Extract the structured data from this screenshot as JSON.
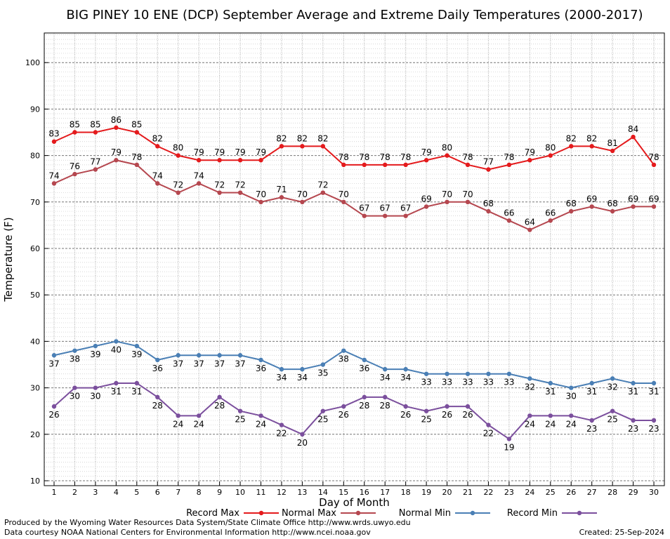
{
  "chart_data": {
    "type": "line",
    "title": "BIG PINEY 10 ENE (DCP) September Average and Extreme Daily Temperatures (2000-2017)",
    "xlabel": "Day of Month",
    "ylabel": "Temperature (F)",
    "xlim": [
      1,
      30
    ],
    "ylim": [
      10,
      106
    ],
    "yticks": [
      10,
      20,
      30,
      40,
      50,
      60,
      70,
      80,
      90,
      100
    ],
    "grid": true,
    "legend_position": "bottom",
    "x": [
      1,
      2,
      3,
      4,
      5,
      6,
      7,
      8,
      9,
      10,
      11,
      12,
      13,
      14,
      15,
      16,
      17,
      18,
      19,
      20,
      21,
      22,
      23,
      24,
      25,
      26,
      27,
      28,
      29,
      30
    ],
    "series": [
      {
        "name": "Record Max",
        "color": "#e41a1c",
        "label_pos": "above",
        "values": [
          83,
          85,
          85,
          86,
          85,
          82,
          80,
          79,
          79,
          79,
          79,
          82,
          82,
          82,
          78,
          78,
          78,
          78,
          79,
          80,
          78,
          77,
          78,
          79,
          80,
          82,
          82,
          81,
          84,
          78
        ]
      },
      {
        "name": "Normal Max",
        "color": "#b5474f",
        "label_pos": "above",
        "values": [
          74,
          76,
          77,
          79,
          78,
          74,
          72,
          74,
          72,
          72,
          70,
          71,
          70,
          72,
          70,
          67,
          67,
          67,
          69,
          70,
          70,
          68,
          66,
          64,
          66,
          68,
          69,
          68,
          69,
          69
        ]
      },
      {
        "name": "Normal Min",
        "color": "#4a7fb5",
        "label_pos": "below",
        "values": [
          37,
          38,
          39,
          40,
          39,
          36,
          37,
          37,
          37,
          37,
          36,
          34,
          34,
          35,
          38,
          36,
          34,
          34,
          33,
          33,
          33,
          33,
          33,
          32,
          31,
          30,
          31,
          32,
          31,
          31
        ]
      },
      {
        "name": "Record Min",
        "color": "#7b4f9d",
        "label_pos": "below",
        "values": [
          26,
          30,
          30,
          31,
          31,
          28,
          24,
          24,
          28,
          25,
          24,
          22,
          20,
          25,
          26,
          28,
          28,
          26,
          25,
          26,
          26,
          22,
          19,
          24,
          24,
          24,
          23,
          25,
          23,
          23
        ]
      }
    ]
  },
  "footer": {
    "produced_by": "Produced by the Wyoming Water Resources Data System/State Climate Office http://www.wrds.uwyo.edu",
    "courtesy": "Data courtesy NOAA National Centers for Environmental Information http://www.ncei.noaa.gov",
    "created": "Created:  25-Sep-2024"
  }
}
